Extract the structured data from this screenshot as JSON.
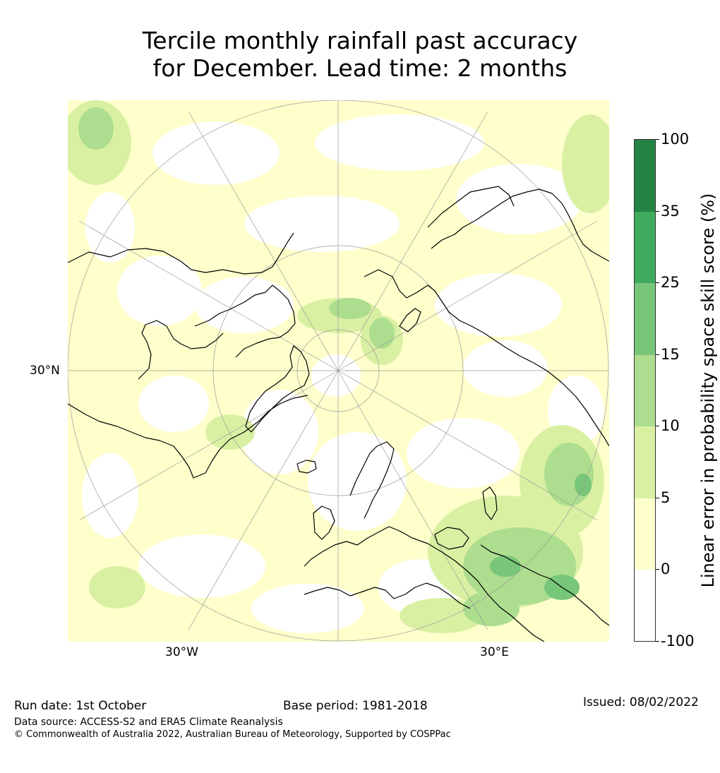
{
  "title": {
    "line1": "Tercile monthly rainfall past accuracy",
    "line2": "for December. Lead time: 2 months"
  },
  "map": {
    "projection": "north-polar-stereographic",
    "land_outline_color": "#000000",
    "graticule_color": "#9a9a9a",
    "labels": {
      "lat_30n": "30°N",
      "lon_30w": "30°W",
      "lon_30e": "30°E"
    }
  },
  "colorbar": {
    "title": "Linear error in probability space skill score (%)",
    "bins": [
      {
        "from": -100,
        "to": 0,
        "color": "#ffffff"
      },
      {
        "from": 0,
        "to": 5,
        "color": "#ffffcc"
      },
      {
        "from": 5,
        "to": 10,
        "color": "#d9f0a3"
      },
      {
        "from": 10,
        "to": 15,
        "color": "#addd8e"
      },
      {
        "from": 15,
        "to": 25,
        "color": "#78c679"
      },
      {
        "from": 25,
        "to": 35,
        "color": "#41ab5d"
      },
      {
        "from": 35,
        "to": 100,
        "color": "#238443"
      }
    ],
    "tick_labels": [
      "100",
      "35",
      "25",
      "15",
      "10",
      "5",
      "0",
      "-100"
    ]
  },
  "footer": {
    "run_date": "Run date: 1st October",
    "base_period": "Base period: 1981-2018",
    "issued": "Issued: 08/02/2022",
    "data_source": "Data source: ACCESS-S2 and ERA5 Climate Reanalysis",
    "copyright": "© Commonwealth of Australia 2022, Australian Bureau of Meteorology, Supported by COSPPac"
  }
}
